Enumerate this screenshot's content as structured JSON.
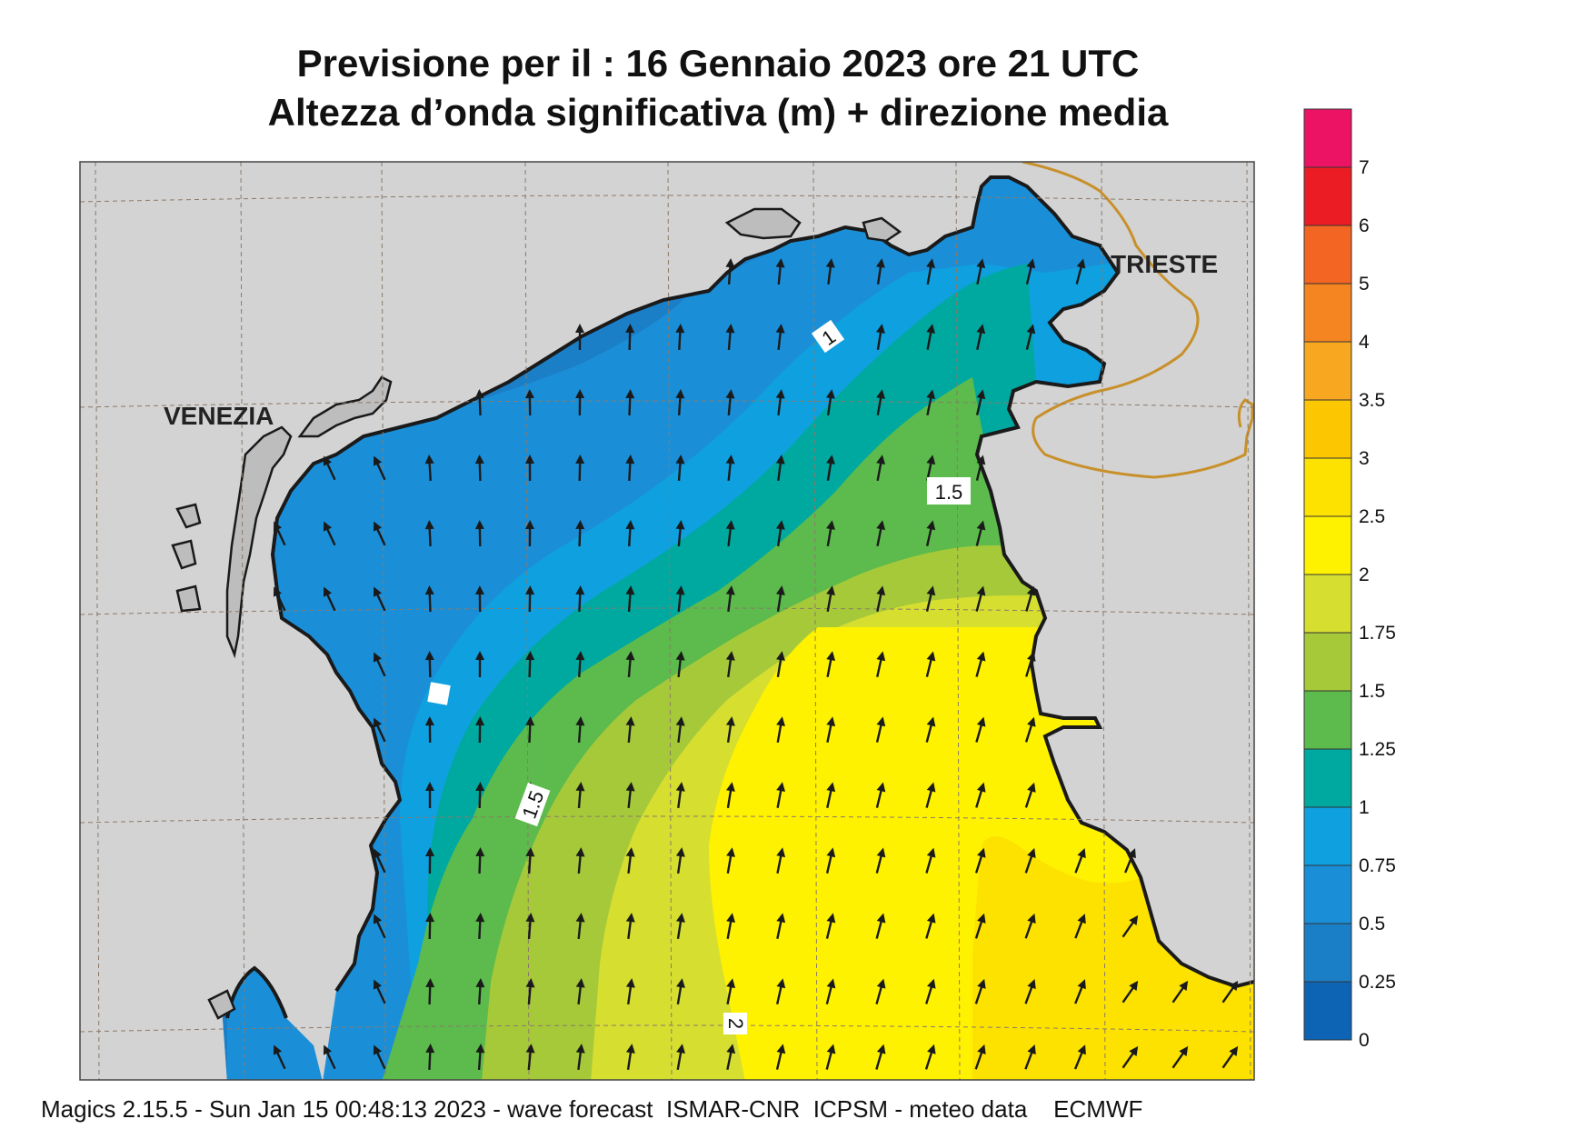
{
  "header": {
    "line1": "Previsione per il  :  16  Gennaio  2023   ore 21 UTC",
    "line2": "Altezza d’onda significativa (m) + direzione media"
  },
  "map": {
    "region": "Northern Adriatic Sea",
    "cities": [
      "VENEZIA",
      "TRIESTE"
    ],
    "land_color": "#d3d3d3",
    "coast_color": "#1a1a1a",
    "border_color": "#c8902a",
    "grid_color": "#8a7a6a",
    "contour_labels": [
      "1",
      "1.5",
      "1.5",
      "2"
    ],
    "field_samples": [
      {
        "area": "north coast near Venezia",
        "height_m": 0.5
      },
      {
        "area": "gulf of Trieste",
        "height_m": 0.75
      },
      {
        "area": "central north basin",
        "height_m": 1.25
      },
      {
        "area": "south-central basin",
        "height_m": 1.75
      },
      {
        "area": "south-east basin",
        "height_m": 2.25
      },
      {
        "area": "south-east corner",
        "height_m": 2.5
      }
    ],
    "arrow_direction": "pointing northward with slight north-eastward tilt in the east",
    "arrow_icon": "wave-direction-arrow-icon"
  },
  "legend": {
    "levels": [
      "0",
      "0.25",
      "0.5",
      "0.75",
      "1",
      "1.25",
      "1.5",
      "1.75",
      "2",
      "2.5",
      "3",
      "3.5",
      "4",
      "5",
      "6",
      "7"
    ],
    "colors": [
      "#0d64b4",
      "#1b7fc8",
      "#1a8fd8",
      "#0fa0e0",
      "#00a9a0",
      "#5cbb4c",
      "#a6c93a",
      "#d6de30",
      "#fff200",
      "#fde200",
      "#fcc600",
      "#f8a820",
      "#f58520",
      "#f26522",
      "#ec1c24",
      "#ec1364"
    ]
  },
  "footer": {
    "text": "Magics 2.15.5 - Sun Jan 15 00:48:13 2023 - wave forecast  ISMAR-CNR  ICPSM - meteo data    ECMWF"
  }
}
